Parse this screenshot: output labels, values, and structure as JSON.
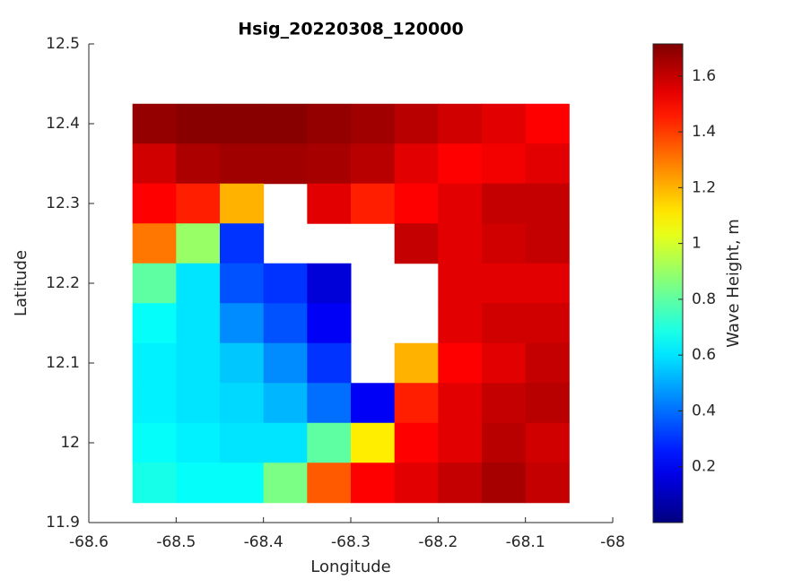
{
  "chart_data": {
    "type": "heatmap",
    "title": "Hsig_20220308_120000",
    "x_label": "Longitude",
    "y_label": "Latitude",
    "x": [
      -68.525,
      -68.475,
      -68.425,
      -68.375,
      -68.325,
      -68.275,
      -68.225,
      -68.175,
      -68.125,
      -68.075
    ],
    "y": [
      12.4,
      12.35,
      12.3,
      12.25,
      12.2,
      12.15,
      12.1,
      12.05,
      12.0,
      11.95
    ],
    "z": [
      [
        1.68,
        1.7,
        1.7,
        1.7,
        1.68,
        1.66,
        1.62,
        1.58,
        1.55,
        1.5
      ],
      [
        1.58,
        1.64,
        1.66,
        1.66,
        1.65,
        1.62,
        1.55,
        1.5,
        1.52,
        1.55
      ],
      [
        1.5,
        1.45,
        1.2,
        null,
        1.55,
        1.45,
        1.5,
        1.55,
        1.6,
        1.6
      ],
      [
        1.3,
        0.9,
        0.3,
        null,
        null,
        null,
        1.6,
        1.55,
        1.58,
        1.6
      ],
      [
        0.8,
        0.6,
        0.35,
        0.3,
        0.15,
        null,
        null,
        1.55,
        1.55,
        1.55
      ],
      [
        0.65,
        0.6,
        0.45,
        0.35,
        0.2,
        null,
        null,
        1.55,
        1.58,
        1.58
      ],
      [
        0.62,
        0.6,
        0.55,
        0.45,
        0.3,
        null,
        1.2,
        1.5,
        1.55,
        1.6
      ],
      [
        0.62,
        0.6,
        0.58,
        0.52,
        0.4,
        0.2,
        1.45,
        1.55,
        1.6,
        1.62
      ],
      [
        0.65,
        0.62,
        0.6,
        0.6,
        0.8,
        1.1,
        1.5,
        1.55,
        1.62,
        1.58
      ],
      [
        0.68,
        0.65,
        0.65,
        0.85,
        1.35,
        1.5,
        1.55,
        1.6,
        1.65,
        1.6
      ]
    ],
    "xlim": [
      -68.6,
      -68
    ],
    "xticks": [
      -68.6,
      -68.5,
      -68.4,
      -68.3,
      -68.2,
      -68.1,
      -68
    ],
    "ylim": [
      11.9,
      12.5
    ],
    "yticks": [
      11.9,
      12,
      12.1,
      12.2,
      12.3,
      12.4,
      12.5
    ],
    "colormap": "jet",
    "clim": [
      0,
      1.715
    ],
    "cticks": [
      0.2,
      0.4,
      0.6,
      0.8,
      1,
      1.2,
      1.4,
      1.6
    ],
    "colorbar_label": "Wave Height, m"
  }
}
